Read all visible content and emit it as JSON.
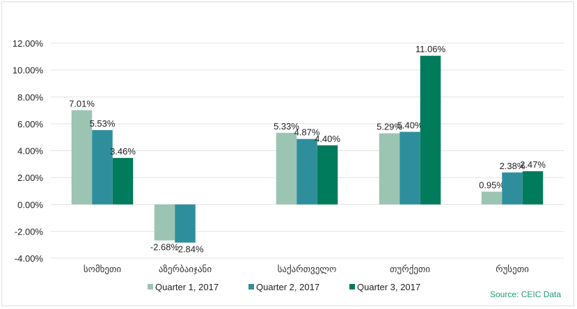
{
  "chart_data": {
    "type": "bar",
    "title": "",
    "xlabel": "",
    "ylabel": "",
    "ylim": [
      -4,
      12
    ],
    "y_ticks": [
      "12.00%",
      "10.00%",
      "8.00%",
      "6.00%",
      "4.00%",
      "2.00%",
      "0.00%",
      "-2.00%",
      "-4.00%"
    ],
    "y_tick_values": [
      12,
      10,
      8,
      6,
      4,
      2,
      0,
      -2,
      -4
    ],
    "grid": true,
    "legend_position": "bottom",
    "categories": [
      "სომხეთი",
      "აზერბაიჯანი",
      "საქართველო",
      "თურქეთი",
      "რუსეთი"
    ],
    "series": [
      {
        "name": "Quarter 1, 2017",
        "color": "#9cc4b3",
        "values": [
          7.01,
          -2.68,
          5.33,
          5.29,
          0.95
        ],
        "labels": [
          "7.01%",
          "-2.68%",
          "5.33%",
          "5.29%",
          "0.95%"
        ]
      },
      {
        "name": "Quarter 2, 2017",
        "color": "#2f8e9c",
        "values": [
          5.53,
          -2.84,
          4.87,
          5.4,
          2.38
        ],
        "labels": [
          "5.53%",
          "-2.84%",
          "4.87%",
          "5.40%",
          "2.38%"
        ]
      },
      {
        "name": "Quarter 3, 2017",
        "color": "#007b5c",
        "values": [
          3.46,
          null,
          4.4,
          11.06,
          2.47
        ],
        "labels": [
          "3.46%",
          "",
          "4.40%",
          "11.06%",
          "2.47%"
        ]
      }
    ],
    "source": "Source: CEIC Data",
    "source_color": "#1f9a77"
  }
}
